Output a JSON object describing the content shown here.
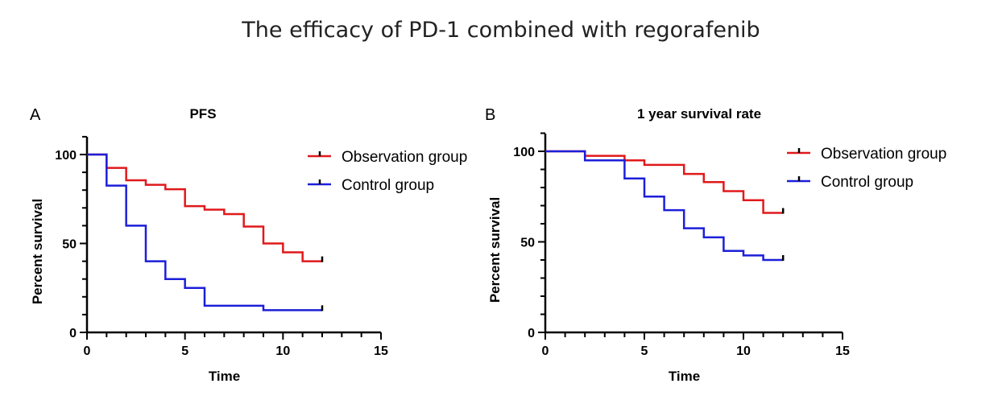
{
  "figure_title": "The efficacy of PD-1 combined with regorafenib",
  "chart_data": [
    {
      "type": "line",
      "panel_label": "A",
      "title": "PFS",
      "xlabel": "Time",
      "ylabel": "Percent survival",
      "xlim": [
        0,
        15
      ],
      "ylim": [
        0,
        100
      ],
      "x_ticks": [
        0,
        5,
        10,
        15
      ],
      "y_ticks": [
        0,
        50,
        100
      ],
      "x_minor_step": 1,
      "y_minor_step": 10,
      "legend_position": "top-right",
      "series": [
        {
          "name": "Observation group",
          "color": "#e0191b",
          "step": true,
          "x": [
            0,
            1,
            2,
            3,
            4,
            5,
            6,
            7,
            8,
            9,
            10,
            11,
            12
          ],
          "y": [
            100,
            92.5,
            85.5,
            83,
            80.5,
            71,
            69,
            66.5,
            59.5,
            50,
            45,
            40,
            40
          ],
          "censored_end": true
        },
        {
          "name": "Control group",
          "color": "#1c1fd8",
          "step": true,
          "x": [
            0,
            1,
            2,
            3,
            4,
            5,
            6,
            9,
            12
          ],
          "y": [
            100,
            82.5,
            60,
            40,
            30,
            25,
            15,
            12.5,
            12.5
          ],
          "censored_end": true
        }
      ]
    },
    {
      "type": "line",
      "panel_label": "B",
      "title": "1 year survival rate",
      "xlabel": "Time",
      "ylabel": "Percent survival",
      "xlim": [
        0,
        15
      ],
      "ylim": [
        0,
        100
      ],
      "x_ticks": [
        0,
        5,
        10,
        15
      ],
      "y_ticks": [
        0,
        50,
        100
      ],
      "x_minor_step": 1,
      "y_minor_step": 10,
      "legend_position": "top-right",
      "series": [
        {
          "name": "Observation group",
          "color": "#e0191b",
          "step": true,
          "x": [
            0,
            2,
            4,
            5,
            7,
            8,
            9,
            10,
            11,
            12
          ],
          "y": [
            100,
            97.5,
            95,
            92.5,
            87.5,
            83,
            78,
            73,
            66,
            66
          ],
          "censored_end": true
        },
        {
          "name": "Control group",
          "color": "#1c1fd8",
          "step": true,
          "x": [
            0,
            2,
            4,
            5,
            6,
            7,
            8,
            9,
            10,
            11,
            12
          ],
          "y": [
            100,
            95,
            85,
            75,
            67.5,
            57.5,
            52.5,
            45,
            42.5,
            40,
            40
          ],
          "censored_end": true
        }
      ]
    }
  ]
}
